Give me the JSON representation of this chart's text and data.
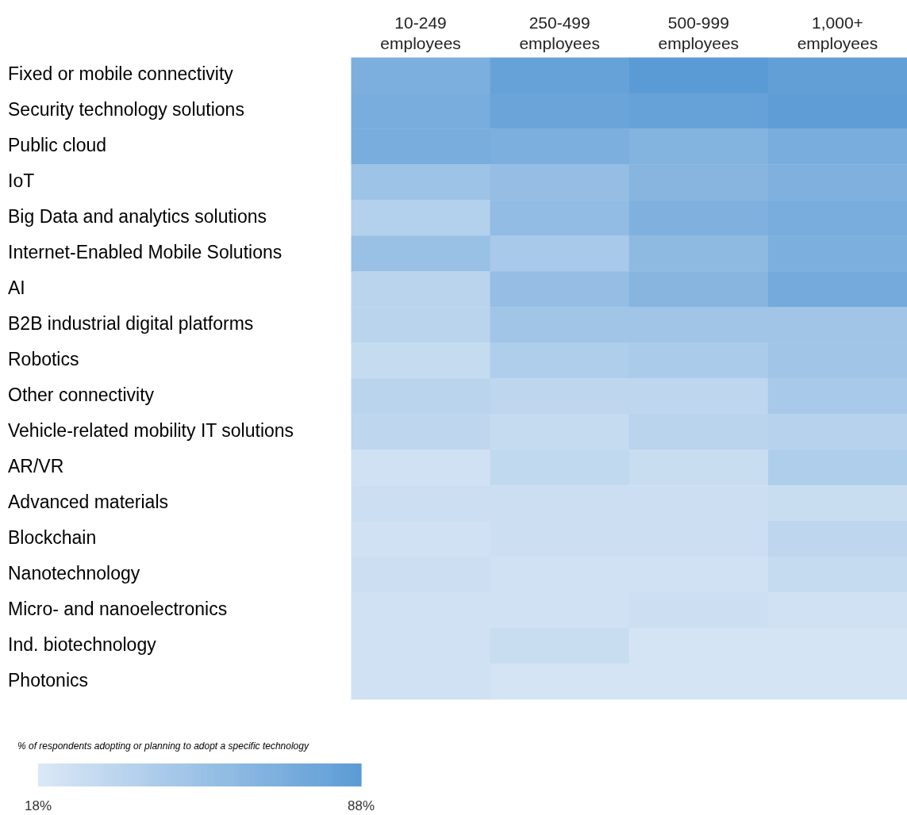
{
  "chart_data": {
    "type": "heatmap",
    "clabel": "% of respondents adopting or planning to adopt a specific technology",
    "categories": [
      "10-249 employees",
      "250-499 employees",
      "500-999 employees",
      "1,000+ employees"
    ],
    "y_categories": [
      "Fixed or mobile connectivity",
      "Security technology solutions",
      "Public cloud",
      "IoT",
      "Big Data and analytics solutions",
      "Internet-Enabled Mobile Solutions",
      "AI",
      "B2B industrial digital platforms",
      "Robotics",
      "Other connectivity",
      "Vehicle-related mobility IT solutions",
      "AR/VR",
      "Advanced materials",
      "Blockchain",
      "Nanotechnology",
      "Micro- and nanoelectronics",
      "Ind. biotechnology",
      "Photonics"
    ],
    "cells": [
      [
        70,
        82,
        88,
        84
      ],
      [
        72,
        80,
        82,
        86
      ],
      [
        72,
        70,
        66,
        72
      ],
      [
        52,
        56,
        64,
        68
      ],
      [
        40,
        58,
        68,
        72
      ],
      [
        54,
        46,
        60,
        70
      ],
      [
        36,
        56,
        64,
        74
      ],
      [
        36,
        50,
        50,
        50
      ],
      [
        30,
        42,
        44,
        50
      ],
      [
        36,
        34,
        34,
        46
      ],
      [
        34,
        30,
        36,
        38
      ],
      [
        24,
        32,
        28,
        42
      ],
      [
        26,
        26,
        26,
        28
      ],
      [
        24,
        26,
        26,
        34
      ],
      [
        26,
        24,
        24,
        30
      ],
      [
        24,
        24,
        26,
        24
      ],
      [
        24,
        28,
        22,
        22
      ],
      [
        24,
        22,
        22,
        22
      ]
    ],
    "clim": [
      18,
      88
    ],
    "cticks": [
      {
        "value": 18,
        "label": "18%"
      },
      {
        "value": 88,
        "label": "88%"
      }
    ],
    "colors": [
      "#dbe8f6",
      "#5b9bd5"
    ],
    "grid": false
  }
}
